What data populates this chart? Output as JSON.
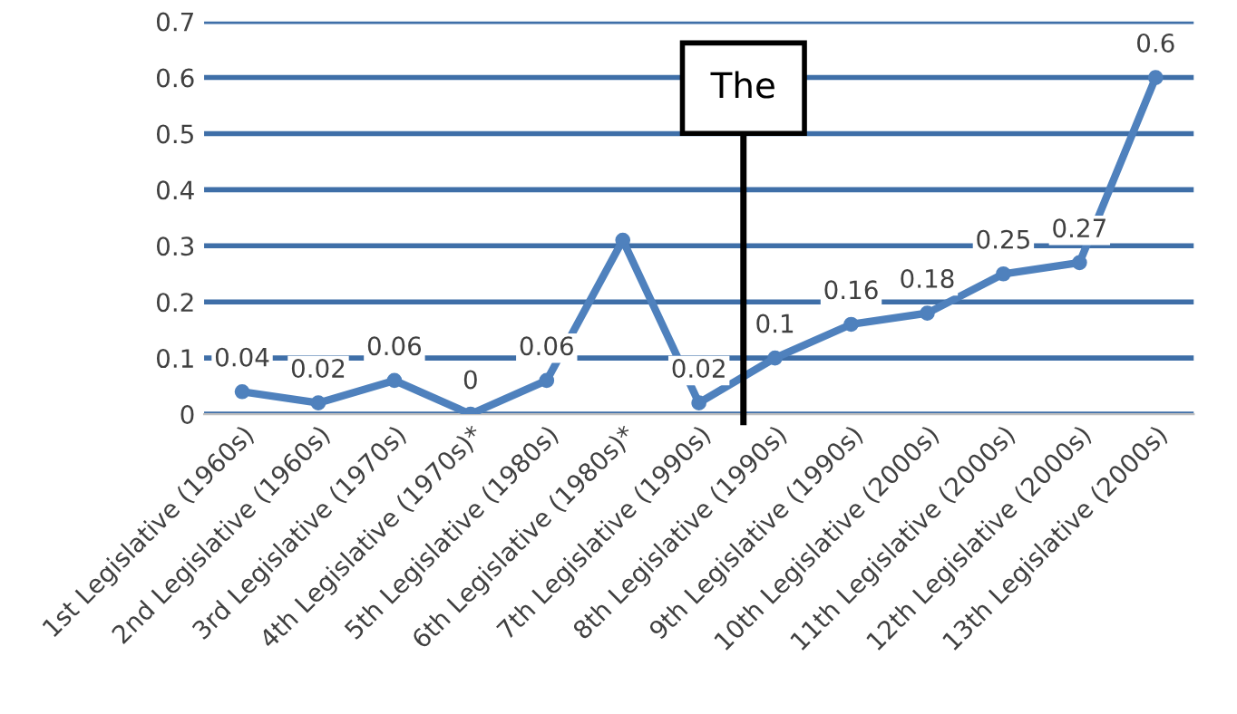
{
  "chart_data": {
    "type": "line",
    "categories": [
      "1st Legislative (1960s)",
      "2nd Legislative (1960s)",
      "3rd Legislative (1970s)",
      "4th Legislative (1970s)*",
      "5th Legislative (1980s)",
      "6th Legislative (1980s)*",
      "7th Legislative (1990s)",
      "8th Legislative (1990s)",
      "9th Legislative (1990s)",
      "10th Legislative (2000s)",
      "11th Legislative (2000s)",
      "12th Legislative (2000s)",
      "13th Legislative (2000s)"
    ],
    "series": [
      {
        "color": "#4f81bd",
        "values": [
          0.04,
          0.02,
          0.06,
          0,
          0.06,
          0.31,
          0.02,
          0.1,
          0.16,
          0.18,
          0.25,
          0.27,
          0.6
        ],
        "value_labels": [
          "0.04",
          "0.02",
          "0.06",
          "0",
          "0.06",
          null,
          "0.02",
          "0.1",
          "0.16",
          "0.18",
          "0.25",
          "0.27",
          "0.6"
        ]
      }
    ],
    "ylim": [
      0,
      0.7
    ],
    "yticks": [
      0,
      0.1,
      0.2,
      0.3,
      0.4,
      0.5,
      0.6,
      0.7
    ],
    "grid": "y",
    "marker": "circle",
    "line_style": "solid",
    "annotations": [
      "The"
    ]
  }
}
